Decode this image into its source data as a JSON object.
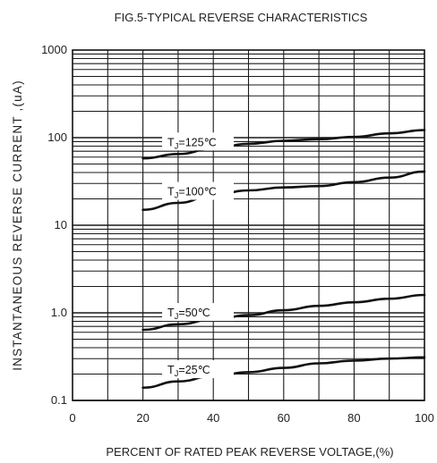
{
  "chart_data": {
    "type": "line",
    "title": "FIG.5-TYPICAL REVERSE CHARACTERISTICS",
    "xlabel": "PERCENT OF RATED PEAK REVERSE VOLTAGE,(%)",
    "ylabel": "INSTANTANEOUS  REVERSE  CURRENT ,(uA)",
    "xlim": [
      0,
      100
    ],
    "ylim": [
      0.1,
      1000
    ],
    "yscale": "log",
    "grid": true,
    "x_ticks": [
      "0",
      "20",
      "40",
      "60",
      "80",
      "100"
    ],
    "y_ticks": [
      "0.1",
      "1.0",
      "10",
      "100",
      "1000"
    ],
    "series": [
      {
        "name": "TJ=125℃",
        "label_sub": "J",
        "label_rest": "=125℃",
        "x": [
          20,
          30,
          40,
          50,
          60,
          70,
          80,
          90,
          100
        ],
        "values": [
          58,
          65,
          75,
          85,
          92,
          96,
          102,
          112,
          122
        ]
      },
      {
        "name": "TJ=100℃",
        "label_sub": "J",
        "label_rest": "=100℃",
        "x": [
          20,
          30,
          40,
          50,
          60,
          70,
          80,
          90,
          100
        ],
        "values": [
          15,
          18,
          22,
          25,
          27,
          28,
          31,
          35,
          41
        ]
      },
      {
        "name": "TJ=50℃",
        "label_sub": "J",
        "label_rest": "=50℃",
        "x": [
          20,
          30,
          40,
          50,
          60,
          70,
          80,
          90,
          100
        ],
        "values": [
          0.64,
          0.74,
          0.84,
          0.94,
          1.07,
          1.2,
          1.32,
          1.45,
          1.6
        ]
      },
      {
        "name": "TJ=25℃",
        "label_sub": "J",
        "label_rest": "=25℃",
        "x": [
          20,
          30,
          40,
          50,
          60,
          70,
          80,
          90,
          100
        ],
        "values": [
          0.14,
          0.165,
          0.19,
          0.21,
          0.235,
          0.265,
          0.285,
          0.3,
          0.31
        ]
      }
    ],
    "colors": {
      "line": "#111111",
      "grid": "#1a1a1a",
      "background": "#ffffff"
    }
  }
}
